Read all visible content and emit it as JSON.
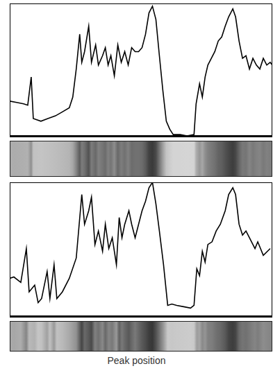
{
  "chart_data": [
    {
      "type": "line",
      "color": "#000000",
      "grid": false,
      "tick_labels": false,
      "xlim": [
        0,
        379
      ],
      "ylim": [
        0,
        100
      ],
      "x": [
        0,
        10,
        20,
        26,
        31,
        34,
        45,
        55,
        66,
        76,
        86,
        91,
        96,
        101,
        104,
        108,
        114,
        118,
        124,
        128,
        134,
        138,
        142,
        146,
        151,
        156,
        161,
        166,
        171,
        176,
        181,
        186,
        191,
        196,
        201,
        206,
        211,
        216,
        221,
        226,
        231,
        236,
        246,
        256,
        266,
        269,
        274,
        278,
        282,
        286,
        291,
        296,
        301,
        306,
        311,
        316,
        322,
        326,
        331,
        336,
        341,
        346,
        351,
        356,
        361,
        366,
        371,
        376,
        379
      ],
      "values": [
        27,
        26,
        25,
        24,
        45,
        14,
        12,
        14,
        16,
        19,
        22,
        30,
        51,
        77,
        56,
        64,
        83,
        56,
        69,
        54,
        61,
        67,
        54,
        61,
        46,
        69,
        56,
        64,
        54,
        67,
        64,
        64,
        67,
        77,
        93,
        98,
        88,
        61,
        35,
        12,
        6,
        2,
        2,
        1,
        2,
        25,
        40,
        30,
        45,
        54,
        59,
        64,
        72,
        75,
        83,
        90,
        96,
        90,
        72,
        59,
        61,
        51,
        59,
        54,
        51,
        59,
        54,
        56,
        54
      ]
    },
    {
      "type": "line",
      "color": "#000000",
      "grid": false,
      "tick_labels": false,
      "xlabel": "Peak position",
      "xlim": [
        0,
        379
      ],
      "ylim": [
        0,
        100
      ],
      "x": [
        0,
        6,
        16,
        24,
        28,
        36,
        41,
        46,
        54,
        58,
        64,
        68,
        76,
        86,
        96,
        104,
        108,
        114,
        118,
        123,
        128,
        134,
        138,
        143,
        148,
        154,
        158,
        162,
        166,
        172,
        176,
        181,
        186,
        191,
        196,
        201,
        206,
        211,
        216,
        222,
        228,
        234,
        241,
        251,
        261,
        266,
        270,
        274,
        278,
        282,
        286,
        292,
        298,
        304,
        311,
        316,
        322,
        326,
        331,
        336,
        341,
        346,
        354,
        358,
        366,
        376
      ],
      "values": [
        29,
        30,
        26,
        51,
        19,
        24,
        11,
        14,
        34,
        14,
        39,
        14,
        19,
        29,
        44,
        91,
        69,
        79,
        89,
        54,
        64,
        49,
        69,
        51,
        59,
        39,
        74,
        59,
        69,
        79,
        69,
        59,
        69,
        79,
        86,
        96,
        100,
        84,
        64,
        39,
        9,
        10,
        9,
        8,
        7,
        9,
        36,
        31,
        49,
        41,
        54,
        56,
        64,
        69,
        79,
        91,
        96,
        91,
        69,
        61,
        64,
        59,
        51,
        56,
        46,
        51
      ]
    }
  ]
}
